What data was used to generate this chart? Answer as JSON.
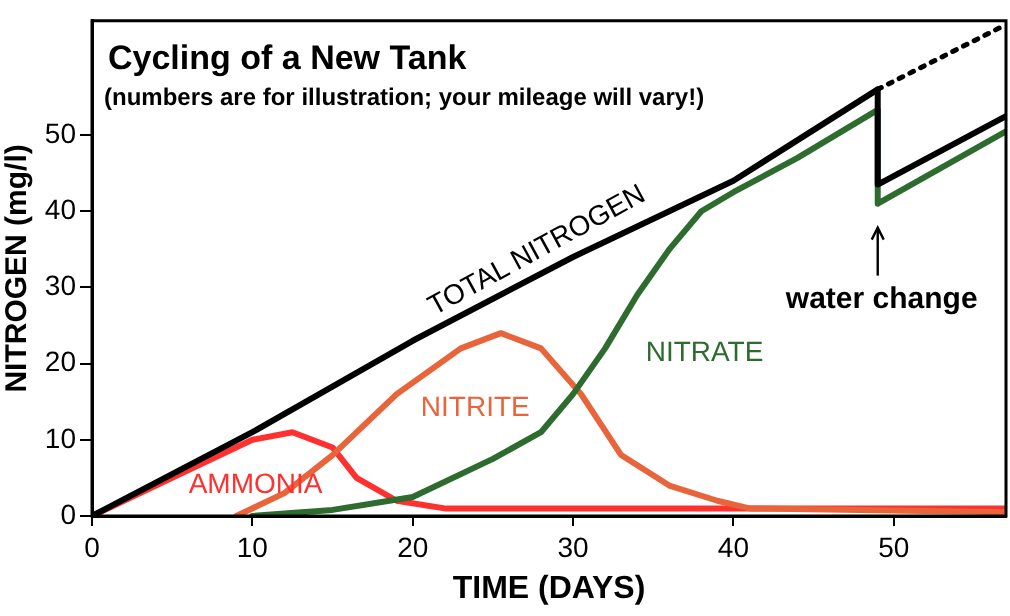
{
  "chart_data": {
    "type": "line",
    "title": "Cycling of a New Tank",
    "subtitle": "(numbers are for illustration; your mileage will vary!)",
    "xlabel": "TIME (DAYS)",
    "ylabel": "NITROGEN (mg/l)",
    "xlim": [
      0,
      57
    ],
    "xticks": [
      0,
      10,
      20,
      30,
      40,
      50
    ],
    "ylim": [
      0,
      65
    ],
    "yticks": [
      0,
      10,
      20,
      30,
      40,
      50
    ],
    "grid": false,
    "legend": false,
    "marker": "none",
    "series": [
      {
        "name": "TOTAL NITROGEN",
        "color": "#000000",
        "x": [
          0,
          10,
          20,
          30,
          40,
          49,
          49,
          57
        ],
        "values": [
          0,
          11,
          23,
          34,
          44,
          56,
          43.5,
          52.5
        ]
      },
      {
        "color": "#000000",
        "line_style": "dotted",
        "x": [
          49,
          57
        ],
        "values": [
          56,
          64.5
        ]
      },
      {
        "name": "NITRATE",
        "color": "#2e6b2e",
        "x": [
          10,
          15,
          20,
          25,
          28,
          30,
          32,
          34,
          36,
          38,
          40,
          44,
          49,
          49,
          57
        ],
        "values": [
          0,
          0.8,
          2.5,
          7.5,
          11,
          16,
          22,
          29,
          35,
          40,
          42.5,
          47,
          53.3,
          41,
          50.5
        ]
      },
      {
        "name": "NITRITE",
        "color": "#e8643a",
        "x": [
          9,
          12,
          15,
          19,
          23,
          25.5,
          28,
          30.5,
          33,
          36,
          39,
          41,
          57
        ],
        "values": [
          0,
          3,
          8,
          16,
          22,
          24,
          22,
          16,
          8,
          4,
          2,
          1,
          0.5
        ]
      },
      {
        "name": "AMMONIA",
        "color": "#ff3030",
        "x": [
          0,
          5,
          10,
          12.5,
          15,
          16.5,
          19,
          22,
          57
        ],
        "values": [
          0,
          5,
          10,
          11,
          9,
          5,
          2,
          1,
          1
        ]
      }
    ],
    "annotations": [
      {
        "text": "water change",
        "x": 49,
        "y": 41
      }
    ]
  }
}
